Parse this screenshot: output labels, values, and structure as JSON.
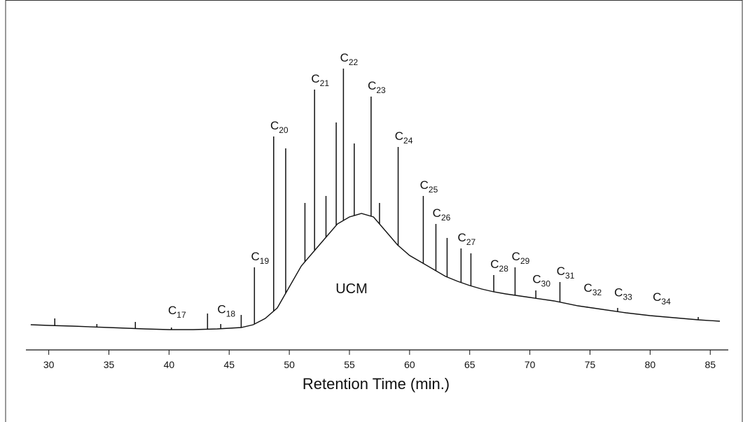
{
  "chart_data": {
    "type": "line",
    "xlabel": "Retention Time  (min.)",
    "xlim": [
      28.1,
      86.5
    ],
    "xticks": [
      30,
      35,
      40,
      45,
      50,
      55,
      60,
      65,
      70,
      75,
      80,
      85
    ],
    "ylim": [
      0,
      470
    ],
    "color": "#111111",
    "series": [
      {
        "x": [
          28.5,
          30,
          32,
          35,
          38,
          40,
          42,
          44,
          46,
          47,
          48,
          49,
          50,
          51,
          52,
          53,
          54,
          55,
          56,
          57,
          58,
          59,
          60,
          61,
          62,
          63,
          64,
          65,
          66,
          67,
          68,
          70,
          72,
          74,
          76,
          78,
          80,
          82,
          84,
          85.8
        ],
        "values": [
          14,
          13,
          12,
          10,
          8,
          7,
          7,
          8,
          10,
          14,
          23,
          38,
          68,
          98,
          118,
          138,
          158,
          168,
          173,
          168,
          148,
          128,
          113,
          103,
          93,
          83,
          76,
          70,
          65,
          61,
          58,
          53,
          48,
          41,
          36,
          31,
          27,
          24,
          21,
          19
        ]
      },
      {
        "x": [
          30.5,
          34,
          37.2,
          40.2,
          43.2,
          44.3,
          46,
          47.1,
          48.7,
          49.7,
          51.3,
          52.1,
          53.05,
          53.9,
          54.5,
          55.4,
          56.8,
          57.5,
          59.05,
          61.14,
          62.19,
          63.12,
          64.28,
          65.1,
          67.0,
          68.77,
          70.5,
          72.5,
          74.76,
          77.3,
          80.5,
          84.0
        ],
        "values": [
          23,
          15,
          18,
          10,
          30,
          15,
          28,
          96,
          283,
          266,
          188,
          350,
          198,
          303,
          380,
          273,
          340,
          188,
          268,
          198,
          158,
          138,
          123,
          116,
          85,
          96,
          63,
          75,
          40,
          38,
          26,
          25
        ]
      }
    ],
    "annotations": [
      {
        "label": "C",
        "subscript": "17",
        "x": 40.2
      },
      {
        "label": "C",
        "subscript": "18",
        "x": 44.3
      },
      {
        "label": "C",
        "subscript": "19",
        "x": 47.1
      },
      {
        "label": "C",
        "subscript": "20",
        "x": 48.7
      },
      {
        "label": "C",
        "subscript": "21",
        "x": 52.1
      },
      {
        "label": "C",
        "subscript": "22",
        "x": 54.5
      },
      {
        "label": "C",
        "subscript": "23",
        "x": 56.8
      },
      {
        "label": "C",
        "subscript": "24",
        "x": 59.05
      },
      {
        "label": "C",
        "subscript": "25",
        "x": 61.14
      },
      {
        "label": "C",
        "subscript": "26",
        "x": 62.19
      },
      {
        "label": "C",
        "subscript": "27",
        "x": 64.28
      },
      {
        "label": "C",
        "subscript": "28",
        "x": 67.0
      },
      {
        "label": "C",
        "subscript": "29",
        "x": 68.77
      },
      {
        "label": "C",
        "subscript": "30",
        "x": 70.5
      },
      {
        "label": "C",
        "subscript": "31",
        "x": 72.5
      },
      {
        "label": "C",
        "subscript": "32",
        "x": 74.76
      },
      {
        "label": "C",
        "subscript": "33",
        "x": 77.3
      },
      {
        "label": "C",
        "subscript": "34",
        "x": 80.5
      }
    ],
    "region_label": "UCM"
  }
}
